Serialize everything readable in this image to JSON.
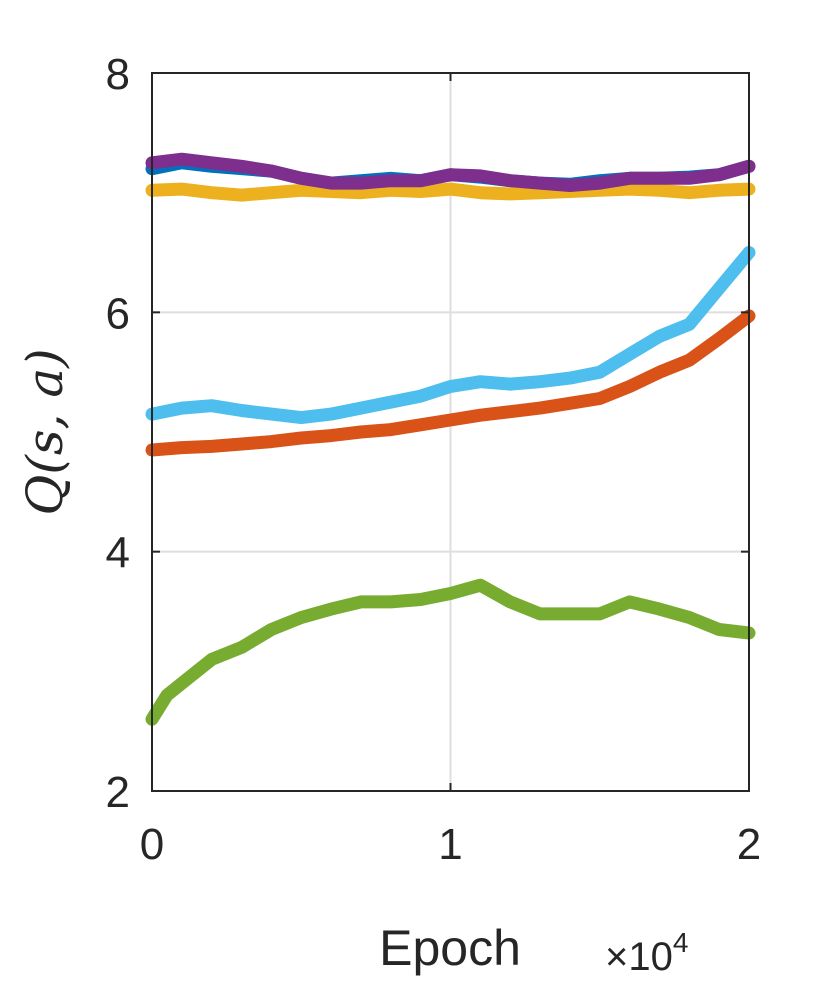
{
  "chart_data": {
    "type": "line",
    "xlabel": "Epoch",
    "ylabel": "Q(s, a)",
    "x_multiplier": "×10",
    "x_multiplier_exp": "4",
    "xlim": [
      0,
      2
    ],
    "ylim": [
      2,
      8
    ],
    "xticks": [
      0,
      1,
      2
    ],
    "xtick_labels": [
      "0",
      "1",
      "2"
    ],
    "yticks": [
      2,
      4,
      6,
      8
    ],
    "ytick_labels": [
      "2",
      "4",
      "6",
      "8"
    ],
    "grid": true,
    "series": [
      {
        "color": "#0072BD",
        "x": [
          0,
          0.1,
          0.2,
          0.3,
          0.4,
          0.5,
          0.6,
          0.7,
          0.8,
          0.9,
          1.0,
          1.1,
          1.2,
          1.3,
          1.4,
          1.5,
          1.6,
          1.7,
          1.8,
          1.9,
          2.0
        ],
        "y": [
          7.2,
          7.25,
          7.22,
          7.2,
          7.18,
          7.12,
          7.08,
          7.1,
          7.12,
          7.1,
          7.15,
          7.13,
          7.1,
          7.08,
          7.07,
          7.1,
          7.12,
          7.12,
          7.13,
          7.15,
          7.22
        ]
      },
      {
        "color": "#D95319",
        "x": [
          0,
          0.1,
          0.2,
          0.3,
          0.4,
          0.5,
          0.6,
          0.7,
          0.8,
          0.9,
          1.0,
          1.1,
          1.2,
          1.3,
          1.4,
          1.5,
          1.6,
          1.7,
          1.8,
          1.9,
          2.0
        ],
        "y": [
          4.85,
          4.87,
          4.88,
          4.9,
          4.92,
          4.95,
          4.97,
          5.0,
          5.02,
          5.06,
          5.1,
          5.14,
          5.17,
          5.2,
          5.24,
          5.28,
          5.38,
          5.5,
          5.6,
          5.78,
          5.97
        ]
      },
      {
        "color": "#EDB120",
        "x": [
          0,
          0.1,
          0.2,
          0.3,
          0.4,
          0.5,
          0.6,
          0.7,
          0.8,
          0.9,
          1.0,
          1.1,
          1.2,
          1.3,
          1.4,
          1.5,
          1.6,
          1.7,
          1.8,
          1.9,
          2.0
        ],
        "y": [
          7.02,
          7.03,
          7.0,
          6.98,
          7.0,
          7.02,
          7.01,
          7.0,
          7.02,
          7.01,
          7.03,
          7.0,
          6.99,
          7.0,
          7.01,
          7.02,
          7.03,
          7.02,
          7.0,
          7.02,
          7.03
        ]
      },
      {
        "color": "#7E2F8E",
        "x": [
          0,
          0.1,
          0.2,
          0.3,
          0.4,
          0.5,
          0.6,
          0.7,
          0.8,
          0.9,
          1.0,
          1.1,
          1.2,
          1.3,
          1.4,
          1.5,
          1.6,
          1.7,
          1.8,
          1.9,
          2.0
        ],
        "y": [
          7.25,
          7.28,
          7.25,
          7.22,
          7.18,
          7.12,
          7.08,
          7.08,
          7.1,
          7.1,
          7.15,
          7.14,
          7.1,
          7.08,
          7.06,
          7.08,
          7.12,
          7.12,
          7.12,
          7.15,
          7.22
        ]
      },
      {
        "color": "#77AC30",
        "x": [
          0,
          0.05,
          0.1,
          0.2,
          0.3,
          0.4,
          0.5,
          0.6,
          0.7,
          0.8,
          0.9,
          1.0,
          1.1,
          1.2,
          1.3,
          1.4,
          1.5,
          1.6,
          1.7,
          1.8,
          1.9,
          2.0
        ],
        "y": [
          2.6,
          2.8,
          2.9,
          3.1,
          3.2,
          3.35,
          3.45,
          3.52,
          3.58,
          3.58,
          3.6,
          3.65,
          3.72,
          3.58,
          3.48,
          3.48,
          3.48,
          3.58,
          3.52,
          3.45,
          3.35,
          3.32
        ]
      },
      {
        "color": "#4DBEEE",
        "x": [
          0,
          0.1,
          0.2,
          0.3,
          0.4,
          0.5,
          0.6,
          0.7,
          0.8,
          0.9,
          1.0,
          1.1,
          1.2,
          1.3,
          1.4,
          1.5,
          1.6,
          1.7,
          1.8,
          1.9,
          2.0
        ],
        "y": [
          5.15,
          5.2,
          5.22,
          5.18,
          5.15,
          5.12,
          5.15,
          5.2,
          5.25,
          5.3,
          5.38,
          5.42,
          5.4,
          5.42,
          5.45,
          5.5,
          5.65,
          5.8,
          5.9,
          6.2,
          6.5
        ]
      }
    ]
  }
}
